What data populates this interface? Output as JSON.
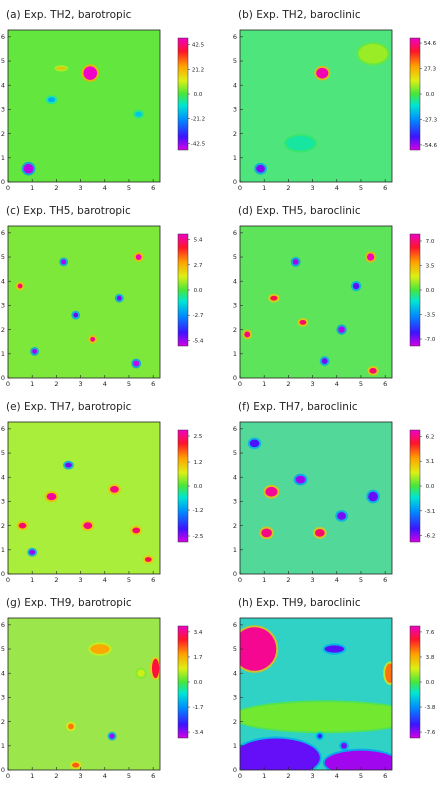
{
  "chart_data": [
    {
      "type": "heatmap",
      "title": "(a) Exp. TH2, barotropic",
      "xlim": [
        0,
        6.283
      ],
      "ylim": [
        0,
        6.283
      ],
      "x_ticks": [
        "0",
        "1",
        "2",
        "3",
        "4",
        "5",
        "6"
      ],
      "y_ticks": [
        "0",
        "1",
        "2",
        "3",
        "4",
        "5",
        "6"
      ],
      "colorbar": {
        "ticks": [
          "42.5",
          "21.2",
          "0.0",
          "-21.2",
          "-42.5"
        ],
        "range": [
          -48,
          48
        ]
      },
      "background": "#63e63d",
      "features": [
        {
          "x": 3.4,
          "y": 4.5,
          "rx": 0.28,
          "ry": 0.28,
          "value": 48
        },
        {
          "x": 0.85,
          "y": 0.55,
          "rx": 0.2,
          "ry": 0.2,
          "value": -46
        },
        {
          "x": 1.8,
          "y": 3.4,
          "rx": 0.15,
          "ry": 0.1,
          "value": -18
        },
        {
          "x": 5.4,
          "y": 2.8,
          "rx": 0.14,
          "ry": 0.1,
          "value": -14
        },
        {
          "x": 2.2,
          "y": 4.7,
          "rx": 0.2,
          "ry": 0.05,
          "value": 20
        }
      ]
    },
    {
      "type": "heatmap",
      "title": "(b) Exp. TH2, baroclinic",
      "xlim": [
        0,
        6.283
      ],
      "ylim": [
        0,
        6.283
      ],
      "x_ticks": [
        "0",
        "1",
        "2",
        "3",
        "4",
        "5",
        "6"
      ],
      "y_ticks": [
        "0",
        "1",
        "2",
        "3",
        "4",
        "5",
        "6"
      ],
      "colorbar": {
        "ticks": [
          "54.6",
          "27.3",
          "0.0",
          "-27.3",
          "-54.6"
        ],
        "range": [
          -60,
          60
        ]
      },
      "background": "#4ee57d",
      "features": [
        {
          "x": 3.4,
          "y": 4.5,
          "rx": 0.25,
          "ry": 0.22,
          "value": 58
        },
        {
          "x": 0.85,
          "y": 0.55,
          "rx": 0.18,
          "ry": 0.16,
          "value": -52
        },
        {
          "x": 5.5,
          "y": 5.3,
          "rx": 0.6,
          "ry": 0.4,
          "value": 8
        },
        {
          "x": 2.5,
          "y": 1.6,
          "rx": 0.6,
          "ry": 0.3,
          "value": -8
        }
      ]
    },
    {
      "type": "heatmap",
      "title": "(c) Exp. TH5, barotropic",
      "xlim": [
        0,
        6.283
      ],
      "ylim": [
        0,
        6.283
      ],
      "x_ticks": [
        "0",
        "1",
        "2",
        "3",
        "4",
        "5",
        "6"
      ],
      "y_ticks": [
        "0",
        "1",
        "2",
        "3",
        "4",
        "5",
        "6"
      ],
      "colorbar": {
        "ticks": [
          "5.4",
          "2.7",
          "0.0",
          "-2.7",
          "-5.4"
        ],
        "range": [
          -6,
          6
        ]
      },
      "background": "#7de83a",
      "features": [
        {
          "x": 5.4,
          "y": 5.0,
          "rx": 0.12,
          "ry": 0.12,
          "value": 5.8
        },
        {
          "x": 5.3,
          "y": 0.6,
          "rx": 0.12,
          "ry": 0.12,
          "value": -5.8
        },
        {
          "x": 1.1,
          "y": 1.1,
          "rx": 0.1,
          "ry": 0.1,
          "value": -5.5
        },
        {
          "x": 2.3,
          "y": 4.8,
          "rx": 0.1,
          "ry": 0.1,
          "value": -5.5
        },
        {
          "x": 3.5,
          "y": 1.6,
          "rx": 0.1,
          "ry": 0.1,
          "value": 5.5
        },
        {
          "x": 4.6,
          "y": 3.3,
          "rx": 0.1,
          "ry": 0.1,
          "value": -5.2
        },
        {
          "x": 0.5,
          "y": 3.8,
          "rx": 0.1,
          "ry": 0.1,
          "value": 5.2
        },
        {
          "x": 2.8,
          "y": 2.6,
          "rx": 0.1,
          "ry": 0.1,
          "value": -5.0
        }
      ]
    },
    {
      "type": "heatmap",
      "title": "(d) Exp. TH5, baroclinic",
      "xlim": [
        0,
        6.283
      ],
      "ylim": [
        0,
        6.283
      ],
      "x_ticks": [
        "0",
        "1",
        "2",
        "3",
        "4",
        "5",
        "6"
      ],
      "y_ticks": [
        "0",
        "1",
        "2",
        "3",
        "4",
        "5",
        "6"
      ],
      "colorbar": {
        "ticks": [
          "7.0",
          "3.5",
          "0.0",
          "-3.5",
          "-7.0"
        ],
        "range": [
          -8,
          8
        ]
      },
      "background": "#5ee45a",
      "features": [
        {
          "x": 5.4,
          "y": 5.0,
          "rx": 0.15,
          "ry": 0.15,
          "value": 7.8
        },
        {
          "x": 4.2,
          "y": 2.0,
          "rx": 0.13,
          "ry": 0.13,
          "value": -7.6
        },
        {
          "x": 0.3,
          "y": 1.8,
          "rx": 0.12,
          "ry": 0.12,
          "value": 7.2
        },
        {
          "x": 2.3,
          "y": 4.8,
          "rx": 0.12,
          "ry": 0.12,
          "value": -7.4
        },
        {
          "x": 1.4,
          "y": 3.3,
          "rx": 0.15,
          "ry": 0.1,
          "value": 6.5
        },
        {
          "x": 3.5,
          "y": 0.7,
          "rx": 0.12,
          "ry": 0.12,
          "value": -6.8
        },
        {
          "x": 2.6,
          "y": 2.3,
          "rx": 0.14,
          "ry": 0.1,
          "value": 6.8
        },
        {
          "x": 4.8,
          "y": 3.8,
          "rx": 0.13,
          "ry": 0.13,
          "value": -6.5
        },
        {
          "x": 5.5,
          "y": 0.3,
          "rx": 0.15,
          "ry": 0.12,
          "value": 7.0
        }
      ]
    },
    {
      "type": "heatmap",
      "title": "(e) Exp. TH7, barotropic",
      "xlim": [
        0,
        6.283
      ],
      "ylim": [
        0,
        6.283
      ],
      "x_ticks": [
        "0",
        "1",
        "2",
        "3",
        "4",
        "5",
        "6"
      ],
      "y_ticks": [
        "0",
        "1",
        "2",
        "3",
        "4",
        "5",
        "6"
      ],
      "colorbar": {
        "ticks": [
          "2.5",
          "1.2",
          "0.0",
          "-1.2",
          "-2.5"
        ],
        "range": [
          -2.8,
          2.8
        ]
      },
      "background": "#a8ee3a",
      "features": [
        {
          "x": 1.8,
          "y": 3.2,
          "rx": 0.2,
          "ry": 0.15,
          "value": 2.6
        },
        {
          "x": 3.3,
          "y": 2.0,
          "rx": 0.18,
          "ry": 0.14,
          "value": 2.5
        },
        {
          "x": 4.4,
          "y": 3.5,
          "rx": 0.18,
          "ry": 0.14,
          "value": 2.5
        },
        {
          "x": 0.6,
          "y": 2.0,
          "rx": 0.16,
          "ry": 0.12,
          "value": 2.4
        },
        {
          "x": 5.3,
          "y": 1.8,
          "rx": 0.16,
          "ry": 0.12,
          "value": 2.4
        },
        {
          "x": 2.5,
          "y": 4.5,
          "rx": 0.14,
          "ry": 0.1,
          "value": -2.4
        },
        {
          "x": 1.0,
          "y": 0.9,
          "rx": 0.12,
          "ry": 0.1,
          "value": -2.5
        },
        {
          "x": 5.8,
          "y": 0.6,
          "rx": 0.14,
          "ry": 0.1,
          "value": 2.3
        }
      ]
    },
    {
      "type": "heatmap",
      "title": "(f) Exp. TH7, baroclinic",
      "xlim": [
        0,
        6.283
      ],
      "ylim": [
        0,
        6.283
      ],
      "x_ticks": [
        "0",
        "1",
        "2",
        "3",
        "4",
        "5",
        "6"
      ],
      "y_ticks": [
        "0",
        "1",
        "2",
        "3",
        "4",
        "5",
        "6"
      ],
      "colorbar": {
        "ticks": [
          "6.2",
          "3.1",
          "0.0",
          "-3.1",
          "-6.2"
        ],
        "range": [
          -7,
          7
        ]
      },
      "background": "#52d99a",
      "features": [
        {
          "x": 1.3,
          "y": 3.4,
          "rx": 0.25,
          "ry": 0.2,
          "value": 6.5
        },
        {
          "x": 1.1,
          "y": 1.7,
          "rx": 0.22,
          "ry": 0.18,
          "value": 6.3
        },
        {
          "x": 3.3,
          "y": 1.7,
          "rx": 0.2,
          "ry": 0.16,
          "value": 6.0
        },
        {
          "x": 2.5,
          "y": 3.9,
          "rx": 0.2,
          "ry": 0.16,
          "value": -6.4
        },
        {
          "x": 4.2,
          "y": 2.4,
          "rx": 0.18,
          "ry": 0.16,
          "value": -6.0
        },
        {
          "x": 5.5,
          "y": 3.2,
          "rx": 0.2,
          "ry": 0.2,
          "value": -5.8
        },
        {
          "x": 0.6,
          "y": 5.4,
          "rx": 0.2,
          "ry": 0.16,
          "value": -5.5
        }
      ]
    },
    {
      "type": "heatmap",
      "title": "(g) Exp. TH9, barotropic",
      "xlim": [
        0,
        6.283
      ],
      "ylim": [
        0,
        6.283
      ],
      "x_ticks": [
        "0",
        "1",
        "2",
        "3",
        "4",
        "5",
        "6"
      ],
      "y_ticks": [
        "0",
        "1",
        "2",
        "3",
        "4",
        "5",
        "6"
      ],
      "colorbar": {
        "ticks": [
          "3.4",
          "1.7",
          "0.0",
          "-1.7",
          "-3.4"
        ],
        "range": [
          -3.8,
          3.8
        ]
      },
      "background": "#9be64b",
      "features": [
        {
          "x": 3.8,
          "y": 5.0,
          "rx": 0.4,
          "ry": 0.2,
          "value": 1.8
        },
        {
          "x": 2.6,
          "y": 1.8,
          "rx": 0.12,
          "ry": 0.12,
          "value": 2.2
        },
        {
          "x": 4.3,
          "y": 1.4,
          "rx": 0.1,
          "ry": 0.1,
          "value": -3.4
        },
        {
          "x": 2.8,
          "y": 0.2,
          "rx": 0.15,
          "ry": 0.1,
          "value": 2.4
        },
        {
          "x": 5.5,
          "y": 4.0,
          "rx": 0.15,
          "ry": 0.15,
          "value": 0.8
        },
        {
          "x": 6.1,
          "y": 4.2,
          "rx": 0.15,
          "ry": 0.4,
          "value": 3.0
        }
      ]
    },
    {
      "type": "heatmap",
      "title": "(h) Exp. TH9, baroclinic",
      "xlim": [
        0,
        6.283
      ],
      "ylim": [
        0,
        6.283
      ],
      "x_ticks": [
        "0",
        "1",
        "2",
        "3",
        "4",
        "5",
        "6"
      ],
      "y_ticks": [
        "0",
        "1",
        "2",
        "3",
        "4",
        "5",
        "6"
      ],
      "colorbar": {
        "ticks": [
          "7.6",
          "3.8",
          "0.0",
          "-3.8",
          "-7.6"
        ],
        "range": [
          -8.5,
          8.5
        ]
      },
      "background": "#2fd2c5",
      "features": [
        {
          "x": 0.6,
          "y": 5.0,
          "rx": 0.9,
          "ry": 0.9,
          "value": 7.8
        },
        {
          "x": 3.9,
          "y": 5.0,
          "rx": 0.4,
          "ry": 0.15,
          "value": -6.8
        },
        {
          "x": 3.5,
          "y": 2.2,
          "rx": 3.8,
          "ry": 0.6,
          "value": 0.6
        },
        {
          "x": 1.5,
          "y": 0.5,
          "rx": 1.8,
          "ry": 0.8,
          "value": -7.0
        },
        {
          "x": 5.0,
          "y": 0.3,
          "rx": 1.5,
          "ry": 0.5,
          "value": -7.8
        },
        {
          "x": 6.2,
          "y": 4.0,
          "rx": 0.2,
          "ry": 0.4,
          "value": 5.0
        },
        {
          "x": 3.3,
          "y": 1.4,
          "rx": 0.1,
          "ry": 0.1,
          "value": -6.0
        },
        {
          "x": 4.3,
          "y": 1.0,
          "rx": 0.12,
          "ry": 0.12,
          "value": -7.2
        }
      ]
    }
  ]
}
